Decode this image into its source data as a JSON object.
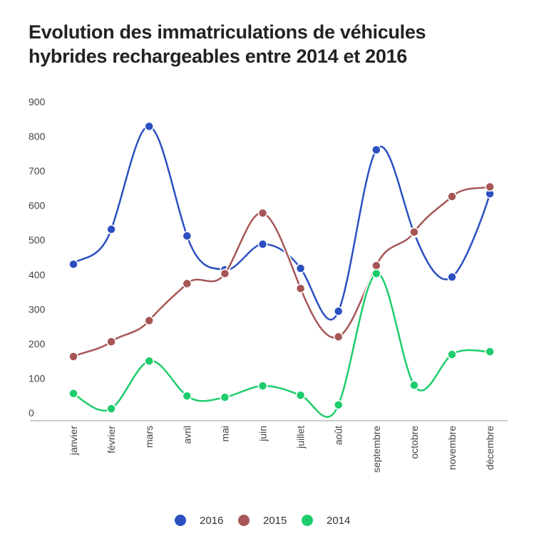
{
  "chart_data": {
    "type": "line",
    "title_line1": "Evolution des immatriculations de véhicules",
    "title_line2": "hybrides rechargeables entre 2014 et 2016",
    "xlabel": "",
    "ylabel": "",
    "categories": [
      "janvier",
      "février",
      "mars",
      "avril",
      "mai",
      "juin",
      "juillet",
      "août",
      "septembre",
      "octobre",
      "novembre",
      "décembre"
    ],
    "y_ticks": [
      "0",
      "100",
      "200",
      "300",
      "400",
      "500",
      "600",
      "700",
      "800",
      "900"
    ],
    "ylim": [
      0,
      900
    ],
    "grid": false,
    "legend_position": "bottom",
    "series": [
      {
        "name": "2016",
        "color": "#2b4fc0",
        "values": [
          430,
          531,
          829,
          512,
          414,
          488,
          418,
          294,
          761,
          520,
          393,
          634
        ]
      },
      {
        "name": "2015",
        "color": "#a65656",
        "values": [
          163,
          206,
          267,
          374,
          403,
          578,
          360,
          220,
          426,
          523,
          626,
          654
        ]
      },
      {
        "name": "2014",
        "color": "#1dcc6c",
        "values": [
          56,
          12,
          150,
          49,
          45,
          78,
          51,
          23,
          403,
          80,
          169,
          177
        ]
      }
    ]
  }
}
